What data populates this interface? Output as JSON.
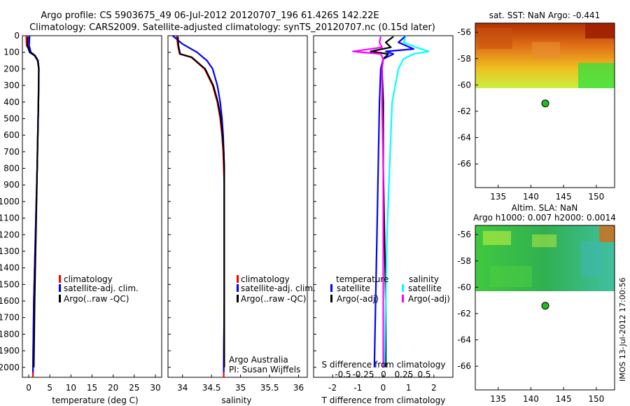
{
  "title_line1": "Argo profile: CS 5903675_49 06-Jul-2012 20120707_196 61.426S 142.22E",
  "title_line2": "Climatology: CARS2009. Satellite-adjusted climatology: synTS_20120707.nc (0.15d later)",
  "colors": {
    "red": "#ff0000",
    "blue": "#0000ff",
    "black": "#000000",
    "cyan": "#00ffff",
    "magenta": "#ff00ff",
    "argo_dot": "#22bb22"
  },
  "depth_ticks": [
    0,
    100,
    200,
    300,
    400,
    500,
    600,
    700,
    800,
    900,
    1000,
    1100,
    1200,
    1300,
    1400,
    1500,
    1600,
    1700,
    1800,
    1900,
    2000
  ],
  "chart_data": [
    {
      "type": "line",
      "name": "temperature",
      "xlabel": "temperature (deg C)",
      "xlim": [
        -1.5,
        31.5
      ],
      "ylim": [
        2060,
        0
      ],
      "xticks": [
        0,
        5,
        10,
        15,
        20,
        25,
        30
      ],
      "legend": [
        "climatology",
        "satellite-adj. clim.",
        "Argo(..raw -QC)"
      ],
      "series": [
        {
          "name": "climatology",
          "color": "red",
          "depth": [
            0,
            60,
            100,
            120,
            150,
            200,
            400,
            800,
            1200,
            1600,
            2000,
            2060
          ],
          "values": [
            -0.6,
            -0.5,
            0.5,
            1.5,
            2.2,
            2.4,
            2.3,
            2.0,
            1.6,
            1.2,
            1.0,
            1.0
          ]
        },
        {
          "name": "satellite-adj. clim.",
          "color": "blue",
          "depth": [
            0,
            60,
            100,
            120,
            150,
            200,
            400,
            800,
            1200,
            1600,
            2000,
            2030
          ],
          "values": [
            0.2,
            0.1,
            0.5,
            1.5,
            2.2,
            2.4,
            2.3,
            2.0,
            1.6,
            1.2,
            1.0,
            1.0
          ]
        },
        {
          "name": "Argo(..raw -QC)",
          "color": "black",
          "depth": [
            5,
            60,
            100,
            120,
            150,
            200,
            400,
            800,
            1200,
            1600,
            2000
          ],
          "values": [
            -0.2,
            -0.3,
            0.2,
            1.4,
            2.1,
            2.4,
            2.3,
            2.0,
            1.7,
            1.4,
            1.2
          ]
        }
      ]
    },
    {
      "type": "line",
      "name": "salinity",
      "xlabel": "salinity",
      "xlim": [
        33.75,
        36.15
      ],
      "ylim": [
        2060,
        0
      ],
      "xticks": [
        34,
        34.5,
        35,
        35.5,
        36
      ],
      "xtick_labels": [
        "34",
        "34.5",
        "35",
        "35.5",
        "36"
      ],
      "legend": [
        "climatology",
        "satellite-adj. clim.",
        "Argo(..raw -QC)"
      ],
      "annotations": [
        "Argo Australia",
        "PI: Susan Wijffels"
      ],
      "series": [
        {
          "name": "climatology",
          "color": "red",
          "depth": [
            0,
            60,
            110,
            130,
            200,
            300,
            400,
            500,
            600,
            700,
            800,
            900,
            1200,
            1600,
            2000,
            2060
          ],
          "values": [
            33.9,
            33.92,
            33.95,
            34.15,
            34.38,
            34.52,
            34.6,
            34.65,
            34.68,
            34.7,
            34.71,
            34.72,
            34.72,
            34.72,
            34.71,
            34.71
          ]
        },
        {
          "name": "satellite-adj. clim.",
          "color": "blue",
          "depth": [
            0,
            50,
            100,
            150,
            200,
            300,
            400,
            500,
            600,
            700,
            800,
            900,
            1200,
            1600,
            2000,
            2030
          ],
          "values": [
            33.83,
            34.0,
            34.25,
            34.42,
            34.52,
            34.6,
            34.65,
            34.68,
            34.7,
            34.71,
            34.72,
            34.72,
            34.72,
            34.72,
            34.71,
            34.71
          ]
        },
        {
          "name": "Argo(..raw -QC)",
          "color": "black",
          "depth": [
            5,
            60,
            110,
            130,
            200,
            300,
            400,
            500,
            600,
            700,
            800,
            900,
            1200,
            1600,
            2000
          ],
          "values": [
            33.92,
            33.93,
            33.96,
            34.16,
            34.39,
            34.53,
            34.61,
            34.66,
            34.69,
            34.71,
            34.72,
            34.72,
            34.72,
            34.72,
            34.72
          ]
        }
      ]
    },
    {
      "type": "line",
      "name": "difference",
      "xlabel": "T difference from climatology",
      "top_label": "S difference from climatology",
      "xlim": [
        -2.75,
        2.75
      ],
      "ylim": [
        2060,
        0
      ],
      "xticks": [
        -2,
        -1,
        0,
        1,
        2
      ],
      "sticks": [
        -0.5,
        -0.25,
        0,
        0.25,
        0.5
      ],
      "stick_labels": [
        "-0.5",
        "-0.25",
        "0",
        "0.25",
        "0.5"
      ],
      "legend_headers": [
        "temperature",
        "salinity"
      ],
      "legend": [
        "satellite",
        "Argo(-adj)",
        "satellite",
        "Argo(-adj)"
      ],
      "series": [
        {
          "name": "T satellite",
          "color": "blue",
          "depth": [
            0,
            40,
            80,
            95,
            110,
            140,
            200,
            400,
            800,
            1200,
            1600,
            2000
          ],
          "values": [
            0.9,
            0.6,
            1.2,
            0.1,
            0.4,
            0.0,
            -0.1,
            -0.15,
            -0.2,
            -0.25,
            -0.3,
            -0.35
          ]
        },
        {
          "name": "T Argo(-adj)",
          "color": "black",
          "depth": [
            5,
            40,
            70,
            95,
            110,
            140,
            200,
            400,
            800,
            1200,
            1600,
            2000
          ],
          "values": [
            0.4,
            0.1,
            0.3,
            -0.5,
            0.2,
            0.0,
            -0.05,
            0.0,
            0.0,
            0.05,
            0.1,
            0.1
          ]
        },
        {
          "name": "S satellite",
          "color": "cyan",
          "depth": [
            0,
            40,
            70,
            95,
            110,
            140,
            200,
            400,
            800,
            1200,
            1600,
            2000
          ],
          "values": [
            0.9,
            0.8,
            1.3,
            1.8,
            1.2,
            0.8,
            0.6,
            0.35,
            0.25,
            0.15,
            0.1,
            0.05
          ]
        },
        {
          "name": "S Argo(-adj)",
          "color": "magenta",
          "depth": [
            5,
            40,
            70,
            95,
            110,
            140,
            200,
            400,
            800,
            1200,
            1600,
            2000
          ],
          "values": [
            -0.1,
            -0.15,
            -0.05,
            -1.2,
            -0.1,
            0.0,
            -0.05,
            -0.05,
            0.0,
            0.0,
            0.0,
            0.0
          ]
        }
      ]
    },
    {
      "type": "heatmap",
      "name": "sst_map",
      "title": "sat. SST: NaN Argo: -0.441",
      "xlim": [
        131.5,
        152.8
      ],
      "ylim": [
        -67.8,
        -55.3
      ],
      "xticks": [
        135,
        140,
        145,
        150
      ],
      "yticks": [
        -56,
        -58,
        -60,
        -62,
        -64,
        -66
      ],
      "data_extent_lat": [
        -55.3,
        -60.2
      ],
      "argo_point": [
        142.2,
        -61.4
      ]
    },
    {
      "type": "heatmap",
      "name": "sla_map",
      "title": "Altim. SLA: NaN",
      "subtitle": "Argo h1000: 0.007 h2000: 0.0014",
      "xlim": [
        131.5,
        152.8
      ],
      "ylim": [
        -67.8,
        -55.3
      ],
      "xticks": [
        135,
        140,
        145,
        150
      ],
      "yticks": [
        -56,
        -58,
        -60,
        -62,
        -64,
        -66
      ],
      "data_extent_lat": [
        -55.3,
        -60.2
      ],
      "argo_point": [
        142.2,
        -61.4
      ]
    }
  ],
  "footer": "IMOS 13-Jul-2012 17:00:56"
}
